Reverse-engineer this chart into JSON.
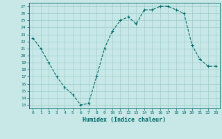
{
  "x": [
    0,
    1,
    2,
    3,
    4,
    5,
    6,
    7,
    8,
    9,
    10,
    11,
    12,
    13,
    14,
    15,
    16,
    17,
    18,
    19,
    20,
    21,
    22,
    23
  ],
  "y": [
    22.5,
    21.0,
    19.0,
    17.0,
    15.5,
    14.5,
    13.0,
    13.2,
    17.0,
    21.0,
    23.5,
    25.0,
    25.5,
    24.5,
    26.5,
    26.5,
    27.0,
    27.0,
    26.5,
    26.0,
    21.5,
    19.5,
    18.5,
    18.5
  ],
  "line_color": "#006666",
  "marker": "+",
  "bg_color": "#c8e8e8",
  "grid_color": "#a0cccc",
  "xlabel": "Humidex (Indice chaleur)",
  "xlim": [
    -0.5,
    23.5
  ],
  "ylim": [
    12.5,
    27.5
  ],
  "yticks": [
    13,
    14,
    15,
    16,
    17,
    18,
    19,
    20,
    21,
    22,
    23,
    24,
    25,
    26,
    27
  ],
  "xticks": [
    0,
    1,
    2,
    3,
    4,
    5,
    6,
    7,
    8,
    9,
    10,
    11,
    12,
    13,
    14,
    15,
    16,
    17,
    18,
    19,
    20,
    21,
    22,
    23
  ],
  "tick_color": "#006666",
  "label_color": "#006666"
}
